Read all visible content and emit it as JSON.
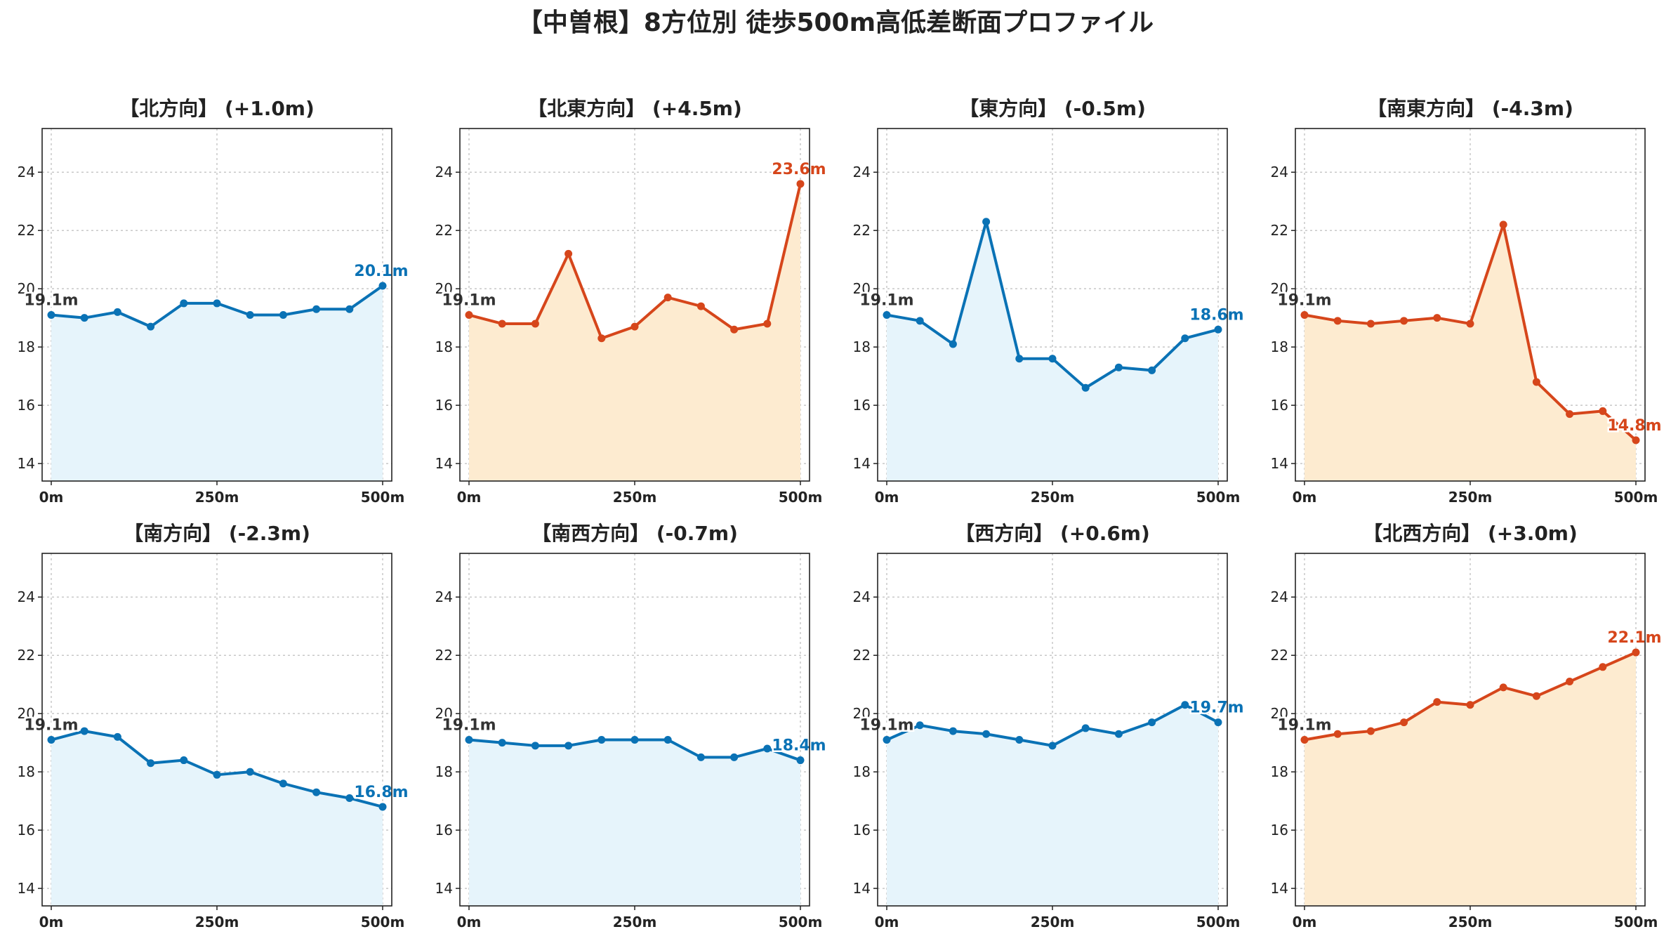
{
  "title": "【中曽根】8方位別 徒歩500m高低差断面プロファイル",
  "colors": {
    "blue": "#0a72b5",
    "blue_fill": "#e6f4fb",
    "orange": "#d6461b",
    "orange_fill": "#fdebd0"
  },
  "chart_data": [
    {
      "type": "line",
      "title": "【北方向】 (+1.0m)",
      "x": [
        0,
        50,
        100,
        150,
        200,
        250,
        300,
        350,
        400,
        450,
        500
      ],
      "values": [
        19.1,
        19.0,
        19.2,
        18.7,
        19.5,
        19.5,
        19.1,
        19.1,
        19.3,
        19.3,
        20.1
      ],
      "xticks": [
        "0m",
        "250m",
        "500m"
      ],
      "yticks": [
        "14",
        "16",
        "18",
        "20",
        "22",
        "24"
      ],
      "ylim": [
        13.4,
        25.5
      ],
      "start_label": "19.1m",
      "end_label": "20.1m",
      "color": "blue",
      "grid": true
    },
    {
      "type": "line",
      "title": "【北東方向】 (+4.5m)",
      "x": [
        0,
        50,
        100,
        150,
        200,
        250,
        300,
        350,
        400,
        450,
        500
      ],
      "values": [
        19.1,
        18.8,
        18.8,
        21.2,
        18.3,
        18.7,
        19.7,
        19.4,
        18.6,
        18.8,
        23.6
      ],
      "xticks": [
        "0m",
        "250m",
        "500m"
      ],
      "yticks": [
        "14",
        "16",
        "18",
        "20",
        "22",
        "24"
      ],
      "ylim": [
        13.4,
        25.5
      ],
      "start_label": "19.1m",
      "end_label": "23.6m",
      "color": "orange",
      "grid": true
    },
    {
      "type": "line",
      "title": "【東方向】 (-0.5m)",
      "x": [
        0,
        50,
        100,
        150,
        200,
        250,
        300,
        350,
        400,
        450,
        500
      ],
      "values": [
        19.1,
        18.9,
        18.1,
        22.3,
        17.6,
        17.6,
        16.6,
        17.3,
        17.2,
        18.3,
        18.6
      ],
      "xticks": [
        "0m",
        "250m",
        "500m"
      ],
      "yticks": [
        "14",
        "16",
        "18",
        "20",
        "22",
        "24"
      ],
      "ylim": [
        13.4,
        25.5
      ],
      "start_label": "19.1m",
      "end_label": "18.6m",
      "color": "blue",
      "grid": true
    },
    {
      "type": "line",
      "title": "【南東方向】 (-4.3m)",
      "x": [
        0,
        50,
        100,
        150,
        200,
        250,
        300,
        350,
        400,
        450,
        500
      ],
      "values": [
        19.1,
        18.9,
        18.8,
        18.9,
        19.0,
        18.8,
        22.2,
        16.8,
        15.7,
        15.8,
        14.8
      ],
      "xticks": [
        "0m",
        "250m",
        "500m"
      ],
      "yticks": [
        "14",
        "16",
        "18",
        "20",
        "22",
        "24"
      ],
      "ylim": [
        13.4,
        25.5
      ],
      "start_label": "19.1m",
      "end_label": "14.8m",
      "color": "orange",
      "grid": true
    },
    {
      "type": "line",
      "title": "【南方向】 (-2.3m)",
      "x": [
        0,
        50,
        100,
        150,
        200,
        250,
        300,
        350,
        400,
        450,
        500
      ],
      "values": [
        19.1,
        19.4,
        19.2,
        18.3,
        18.4,
        17.9,
        18.0,
        17.6,
        17.3,
        17.1,
        16.8
      ],
      "xticks": [
        "0m",
        "250m",
        "500m"
      ],
      "yticks": [
        "14",
        "16",
        "18",
        "20",
        "22",
        "24"
      ],
      "ylim": [
        13.4,
        25.5
      ],
      "start_label": "19.1m",
      "end_label": "16.8m",
      "color": "blue",
      "grid": true
    },
    {
      "type": "line",
      "title": "【南西方向】 (-0.7m)",
      "x": [
        0,
        50,
        100,
        150,
        200,
        250,
        300,
        350,
        400,
        450,
        500
      ],
      "values": [
        19.1,
        19.0,
        18.9,
        18.9,
        19.1,
        19.1,
        19.1,
        18.5,
        18.5,
        18.8,
        18.4
      ],
      "xticks": [
        "0m",
        "250m",
        "500m"
      ],
      "yticks": [
        "14",
        "16",
        "18",
        "20",
        "22",
        "24"
      ],
      "ylim": [
        13.4,
        25.5
      ],
      "start_label": "19.1m",
      "end_label": "18.4m",
      "color": "blue",
      "grid": true
    },
    {
      "type": "line",
      "title": "【西方向】 (+0.6m)",
      "x": [
        0,
        50,
        100,
        150,
        200,
        250,
        300,
        350,
        400,
        450,
        500
      ],
      "values": [
        19.1,
        19.6,
        19.4,
        19.3,
        19.1,
        18.9,
        19.5,
        19.3,
        19.7,
        20.3,
        19.7
      ],
      "xticks": [
        "0m",
        "250m",
        "500m"
      ],
      "yticks": [
        "14",
        "16",
        "18",
        "20",
        "22",
        "24"
      ],
      "ylim": [
        13.4,
        25.5
      ],
      "start_label": "19.1m",
      "end_label": "19.7m",
      "color": "blue",
      "grid": true
    },
    {
      "type": "line",
      "title": "【北西方向】 (+3.0m)",
      "x": [
        0,
        50,
        100,
        150,
        200,
        250,
        300,
        350,
        400,
        450,
        500
      ],
      "values": [
        19.1,
        19.3,
        19.4,
        19.7,
        20.4,
        20.3,
        20.9,
        20.6,
        21.1,
        21.6,
        22.1
      ],
      "xticks": [
        "0m",
        "250m",
        "500m"
      ],
      "yticks": [
        "14",
        "16",
        "18",
        "20",
        "22",
        "24"
      ],
      "ylim": [
        13.4,
        25.5
      ],
      "start_label": "19.1m",
      "end_label": "22.1m",
      "color": "orange",
      "grid": true
    }
  ]
}
